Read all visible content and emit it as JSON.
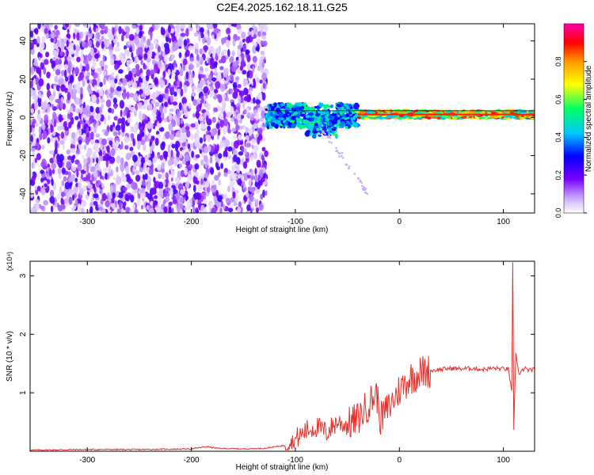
{
  "title": "C2E4.2025.162.18.11.G25",
  "chart_data": [
    {
      "type": "heatmap",
      "xlabel": "Height of straight line (km)",
      "ylabel": "Frequency (Hz)",
      "xlim": [
        -355,
        130
      ],
      "ylim": [
        -50,
        49
      ],
      "xticks": [
        -300,
        -200,
        -100,
        0,
        100
      ],
      "yticks": [
        -40,
        -20,
        0,
        20,
        40
      ],
      "colorbar": {
        "label": "Normalized spectral amplitude",
        "ticks": [
          0.0,
          0.2,
          0.4,
          0.6,
          0.8
        ],
        "tick_labels": [
          "0.0",
          "0.2",
          "0.4",
          "0.6",
          "0.8"
        ],
        "range": [
          0,
          1
        ],
        "colors": [
          "#ffffff",
          "#c9a8ff",
          "#7a00ff",
          "#0000ff",
          "#00c8ff",
          "#00ff66",
          "#ffff00",
          "#ff9900",
          "#ff0000",
          "#ff00aa"
        ]
      },
      "regions": [
        {
          "x_range": [
            -355,
            -128
          ],
          "freq_range": [
            -50,
            49
          ],
          "amplitude": "0.05-0.25 (noise)"
        },
        {
          "x_range": [
            -128,
            -40
          ],
          "freq_center": 1,
          "freq_spread": 6,
          "amplitude": "0.3-0.5"
        },
        {
          "x_range": [
            -40,
            130
          ],
          "freq_center": 1.5,
          "freq_spread": 2,
          "amplitude": "0.6-1.0"
        }
      ],
      "line_trace": {
        "x_range": [
          -128,
          130
        ],
        "freq": [
          1,
          3.5
        ]
      }
    },
    {
      "type": "line",
      "xlabel": "Height of straight line (km)",
      "ylabel": "SNR (10 * v/v)",
      "y_multiplier": "(x10⁴)",
      "xlim": [
        -355,
        130
      ],
      "ylim": [
        0,
        3.25
      ],
      "xticks": [
        -300,
        -200,
        -100,
        0,
        100
      ],
      "yticks": [
        1,
        2,
        3
      ],
      "color": "#e8302b",
      "x": [
        -355,
        -300,
        -250,
        -200,
        -185,
        -175,
        -150,
        -130,
        -110,
        -100,
        -90,
        -80,
        -70,
        -60,
        -50,
        -40,
        -30,
        -22,
        -18,
        -10,
        0,
        10,
        20,
        30,
        40,
        50,
        60,
        70,
        80,
        90,
        100,
        105,
        108,
        109,
        110,
        112,
        115,
        120,
        125,
        130
      ],
      "y": [
        0.02,
        0.03,
        0.03,
        0.04,
        0.08,
        0.05,
        0.04,
        0.05,
        0.1,
        0.2,
        0.35,
        0.42,
        0.32,
        0.5,
        0.45,
        0.55,
        0.8,
        1.0,
        0.55,
        0.75,
        1.05,
        1.25,
        1.35,
        1.38,
        1.4,
        1.42,
        1.41,
        1.42,
        1.4,
        1.42,
        1.41,
        1.4,
        1.0,
        3.2,
        0.4,
        1.7,
        1.3,
        1.42,
        1.38,
        1.4
      ]
    }
  ]
}
